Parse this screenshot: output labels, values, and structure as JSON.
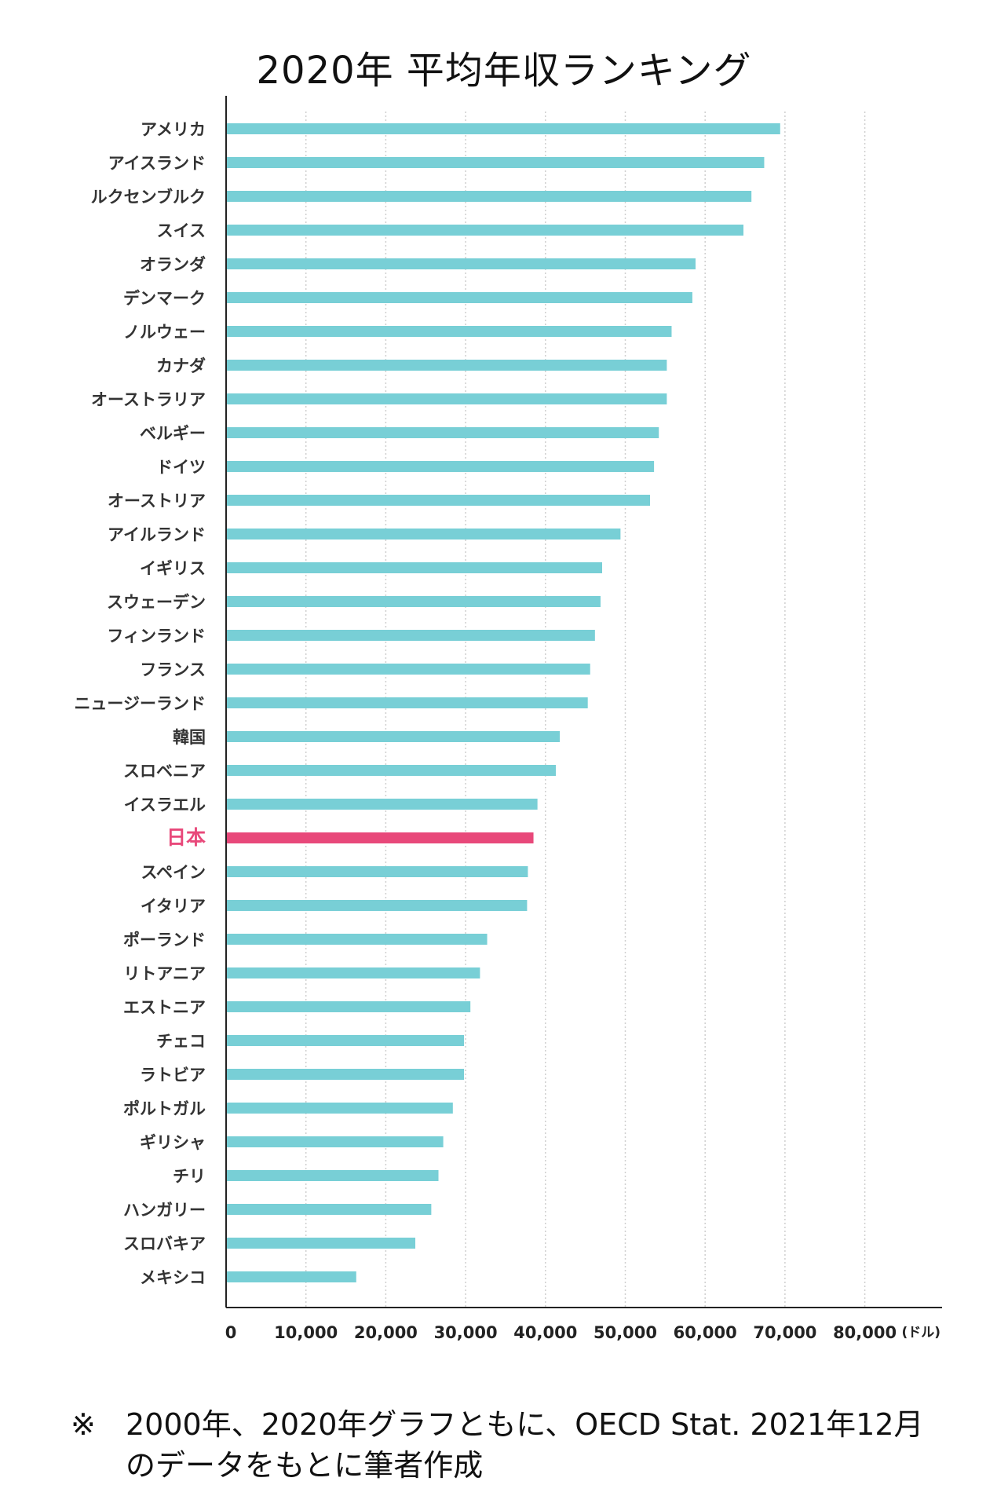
{
  "chart_data": {
    "type": "bar",
    "orientation": "horizontal",
    "title": "2020年 平均年収ランキング",
    "categories": [
      "アメリカ",
      "アイスランド",
      "ルクセンブルク",
      "スイス",
      "オランダ",
      "デンマーク",
      "ノルウェー",
      "カナダ",
      "オーストラリア",
      "ベルギー",
      "ドイツ",
      "オーストリア",
      "アイルランド",
      "イギリス",
      "スウェーデン",
      "フィンランド",
      "フランス",
      "ニュージーランド",
      "韓国",
      "スロベニア",
      "イスラエル",
      "日本",
      "スペイン",
      "イタリア",
      "ポーランド",
      "リトアニア",
      "エストニア",
      "チェコ",
      "ラトビア",
      "ポルトガル",
      "ギリシャ",
      "チリ",
      "ハンガリー",
      "スロバキア",
      "メキシコ"
    ],
    "values": [
      69400,
      67400,
      65800,
      64800,
      58800,
      58400,
      55800,
      55200,
      55200,
      54200,
      53600,
      53100,
      49400,
      47100,
      46900,
      46200,
      45600,
      45300,
      41800,
      41300,
      39000,
      38500,
      37800,
      37700,
      32700,
      31800,
      30600,
      29800,
      29800,
      28400,
      27200,
      26600,
      25700,
      23700,
      16300
    ],
    "highlight": "日本",
    "xlim": [
      0,
      90000
    ],
    "xticks": [
      0,
      10000,
      20000,
      30000,
      40000,
      50000,
      60000,
      70000,
      80000
    ],
    "xtick_labels": [
      "0",
      "10,000",
      "20,000",
      "30,000",
      "40,000",
      "50,000",
      "60,000",
      "70,000",
      "80,000"
    ],
    "xunit": "(ドル)",
    "grid": true,
    "colors": {
      "bar": "#78cfd6",
      "highlight": "#e8487a",
      "highlight_label": "#e8487a",
      "axis": "#222222",
      "grid": "#cfcfcf"
    }
  },
  "footnote": {
    "mark": "※",
    "text": "2000年、2020年グラフともに、OECD Stat. 2021年12月のデータをもとに筆者作成"
  }
}
